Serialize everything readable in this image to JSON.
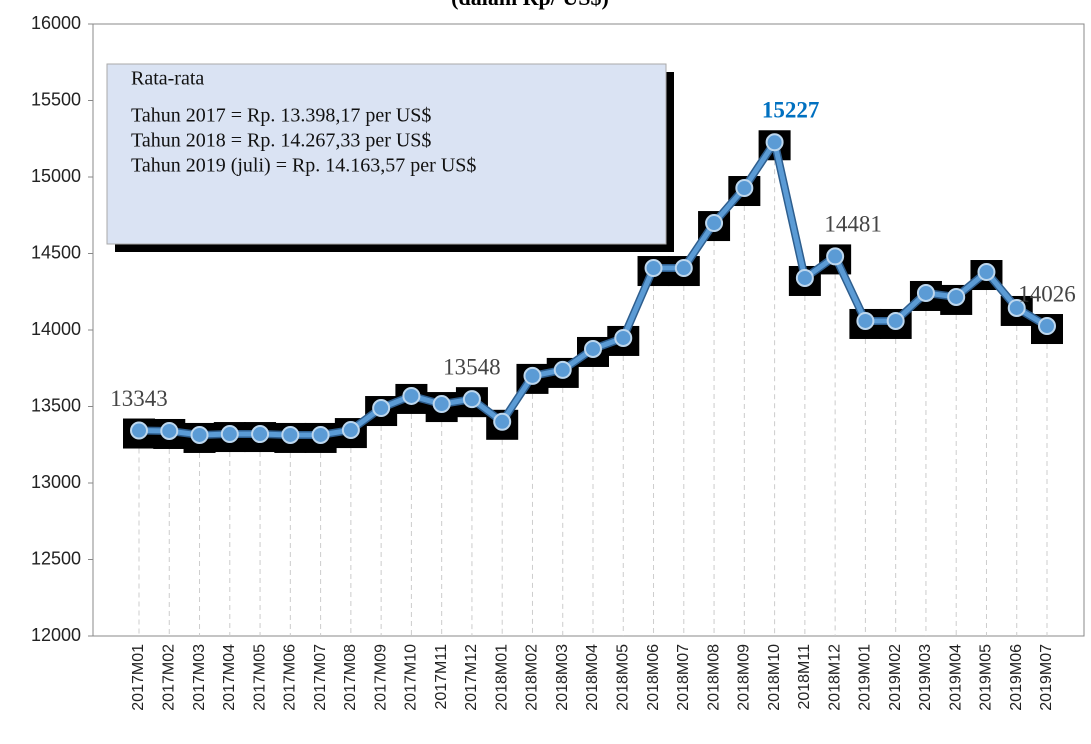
{
  "chart_data": {
    "type": "line",
    "title": "(dalam Rp/ US$)",
    "categories": [
      "2017M01",
      "2017M02",
      "2017M03",
      "2017M04",
      "2017M05",
      "2017M06",
      "2017M07",
      "2017M08",
      "2017M09",
      "2017M10",
      "2017M11",
      "2017M12",
      "2018M01",
      "2018M02",
      "2018M03",
      "2018M04",
      "2018M05",
      "2018M06",
      "2018M07",
      "2018M08",
      "2018M09",
      "2018M10",
      "2018M11",
      "2018M12",
      "2019M01",
      "2019M02",
      "2019M03",
      "2019M04",
      "2019M05",
      "2019M06",
      "2019M07"
    ],
    "values": [
      13343,
      13340,
      13314,
      13320,
      13320,
      13314,
      13314,
      13346,
      13490,
      13569,
      13516,
      13548,
      13400,
      13700,
      13739,
      13876,
      13948,
      14405,
      14405,
      14699,
      14928,
      15227,
      14340,
      14481,
      14059,
      14059,
      14242,
      14216,
      14379,
      14144,
      14026
    ],
    "color": "#5b9bd5",
    "ylim": [
      12000,
      16000
    ],
    "yticks": [
      12000,
      12500,
      13000,
      13500,
      14000,
      14500,
      15000,
      15500,
      16000
    ],
    "labeled_points": [
      0,
      11,
      21,
      23,
      30
    ],
    "highlight_point": 21,
    "highlight_color": "#0070c0",
    "annotation": [
      "Rata-rata",
      "Tahun 2017 = Rp. 13.398,17 per US$",
      "Tahun 2018 = Rp. 14.267,33 per US$",
      "Tahun 2019 (juli) = Rp. 14.163,57 per US$"
    ]
  }
}
